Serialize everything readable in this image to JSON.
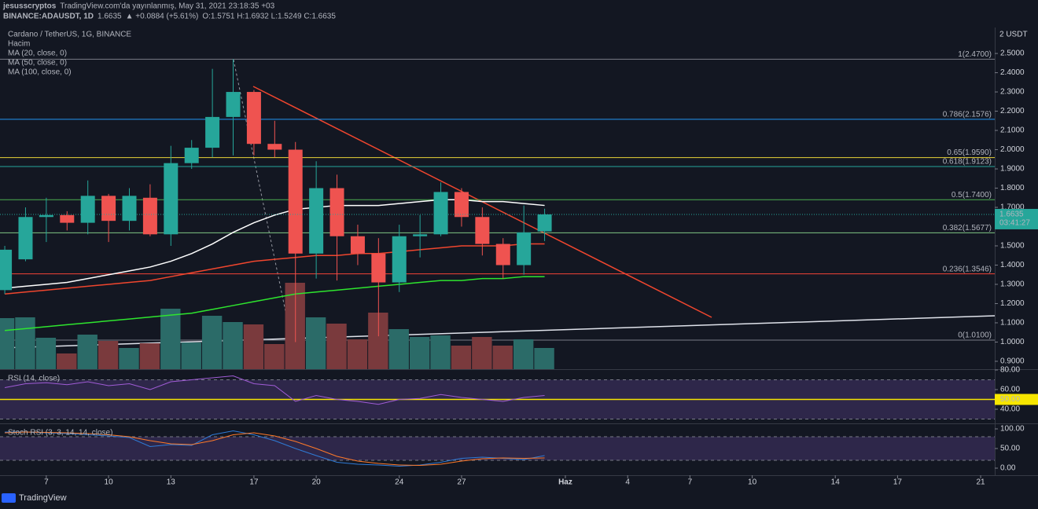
{
  "chart_data": {
    "type": "candlestick",
    "header": {
      "author": "jesusscryptos",
      "published": "TradingView.com'da yayınlanmış, May 31, 2021 23:18:35 +03",
      "symbol": "BINANCE:ADAUSDT, 1D",
      "last": "1.6635",
      "change": "▲ +0.0884 (+5.61%)",
      "ohlc": "O:1.5751 H:1.6932 L:1.5249 C:1.6635"
    },
    "title": "Cardano / TetherUS, 1G, BINANCE",
    "legend": [
      "Hacim",
      "MA (20, close, 0)",
      "MA (50, close, 0)",
      "MA (100, close, 0)"
    ],
    "currency_label": "2 USDT",
    "brand": "TradingView",
    "up_color": "#26a69a",
    "down_color": "#ef5350",
    "x": [
      5,
      6,
      7,
      8,
      9,
      10,
      11,
      12,
      13,
      14,
      15,
      16,
      17,
      18,
      19,
      20,
      21,
      22,
      23,
      24,
      25,
      26,
      27,
      28,
      29,
      30,
      31
    ],
    "xlim": [
      4.77,
      52.68
    ],
    "xticks": [
      7,
      10,
      13,
      17,
      20,
      24,
      27,
      {
        "value": 32,
        "label": "Haz"
      },
      {
        "value": 35,
        "label": "4"
      },
      {
        "value": 38,
        "label": "7"
      },
      {
        "value": 41,
        "label": "10"
      },
      {
        "value": 45,
        "label": "14"
      },
      {
        "value": 48,
        "label": "17"
      },
      {
        "value": 52,
        "label": "21"
      }
    ],
    "open": [
      1.27,
      1.43,
      1.65,
      1.66,
      1.62,
      1.76,
      1.63,
      1.75,
      1.56,
      1.93,
      2.01,
      2.17,
      2.3,
      2.03,
      2.0,
      1.46,
      1.8,
      1.55,
      1.46,
      1.31,
      1.55,
      1.56,
      1.78,
      1.65,
      1.51,
      1.4,
      1.5751
    ],
    "high": [
      1.5,
      1.7,
      1.75,
      1.68,
      1.84,
      1.77,
      1.8,
      1.82,
      2.02,
      2.05,
      2.42,
      2.47,
      2.31,
      2.15,
      2.04,
      1.94,
      1.87,
      1.61,
      1.54,
      1.61,
      1.66,
      1.83,
      1.8,
      1.7,
      1.54,
      1.71,
      1.6932
    ],
    "low": [
      1.25,
      1.42,
      1.52,
      1.58,
      1.56,
      1.52,
      1.58,
      1.55,
      1.5,
      1.9,
      1.96,
      1.97,
      1.97,
      1.96,
      1.0,
      1.33,
      1.32,
      1.4,
      1.03,
      1.26,
      1.44,
      1.55,
      1.6,
      1.45,
      1.33,
      1.35,
      1.5249
    ],
    "close": [
      1.48,
      1.65,
      1.66,
      1.62,
      1.76,
      1.63,
      1.76,
      1.56,
      1.93,
      2.01,
      2.17,
      2.3,
      2.03,
      2.0,
      1.46,
      1.8,
      1.55,
      1.46,
      1.31,
      1.55,
      1.56,
      1.78,
      1.65,
      1.51,
      1.4,
      1.57,
      1.6635
    ],
    "volume": [
      650,
      660,
      400,
      200,
      440,
      360,
      270,
      330,
      770,
      340,
      680,
      600,
      570,
      320,
      1100,
      660,
      580,
      380,
      720,
      510,
      410,
      430,
      300,
      410,
      300,
      380,
      270
    ],
    "volume_up_color": "#2b6b68",
    "volume_down_color": "#7a3a3d",
    "series": [
      {
        "name": "MA (20, close, 0)",
        "color": "#ffffff",
        "values": [
          1.28,
          1.29,
          1.3,
          1.31,
          1.33,
          1.35,
          1.37,
          1.39,
          1.42,
          1.46,
          1.51,
          1.57,
          1.62,
          1.66,
          1.69,
          1.7,
          1.71,
          1.71,
          1.71,
          1.72,
          1.73,
          1.74,
          1.74,
          1.73,
          1.73,
          1.72,
          1.71
        ]
      },
      {
        "name": "MA (50, close, 0)",
        "color": "#f0462e",
        "values": [
          1.25,
          1.26,
          1.27,
          1.28,
          1.29,
          1.3,
          1.31,
          1.32,
          1.34,
          1.36,
          1.38,
          1.4,
          1.42,
          1.43,
          1.44,
          1.45,
          1.45,
          1.46,
          1.46,
          1.47,
          1.48,
          1.49,
          1.5,
          1.5,
          1.5,
          1.51,
          1.51
        ]
      },
      {
        "name": "MA (100, close, 0)",
        "color": "#2ee52e",
        "values": [
          1.06,
          1.07,
          1.08,
          1.09,
          1.1,
          1.11,
          1.12,
          1.13,
          1.14,
          1.15,
          1.17,
          1.19,
          1.21,
          1.23,
          1.25,
          1.26,
          1.27,
          1.28,
          1.29,
          1.3,
          1.31,
          1.32,
          1.32,
          1.33,
          1.33,
          1.34,
          1.34
        ]
      }
    ],
    "ylim": [
      0.859,
      2.635
    ],
    "yticks": [
      {
        "value": 0.9,
        "label": "0.9000"
      },
      {
        "value": 1.0,
        "label": "1.0000"
      },
      {
        "value": 1.1,
        "label": "1.1000"
      },
      {
        "value": 1.2,
        "label": "1.2000"
      },
      {
        "value": 1.3,
        "label": "1.3000"
      },
      {
        "value": 1.4,
        "label": "1.4000"
      },
      {
        "value": 1.5,
        "label": "1.5000"
      },
      {
        "value": 1.6,
        "label": "1.6000"
      },
      {
        "value": 1.7,
        "label": "1.7000"
      },
      {
        "value": 1.8,
        "label": "1.8000"
      },
      {
        "value": 1.9,
        "label": "1.9000"
      },
      {
        "value": 2.0,
        "label": "2.0000"
      },
      {
        "value": 2.1,
        "label": "2.1000"
      },
      {
        "value": 2.2,
        "label": "2.2000"
      },
      {
        "value": 2.3,
        "label": "2.3000"
      },
      {
        "value": 2.4,
        "label": "2.4000"
      },
      {
        "value": 2.5,
        "label": "2.5000"
      }
    ],
    "fib_levels": [
      {
        "value": 2.47,
        "label": "1(2.4700)",
        "color": "#787b86"
      },
      {
        "value": 2.1576,
        "label": "0.786(2.1576)",
        "color": "#2196f3"
      },
      {
        "value": 1.959,
        "label": "0.65(1.9590)",
        "color": "#e9d437"
      },
      {
        "value": 1.9123,
        "label": "0.618(1.9123)",
        "color": "#26a69a"
      },
      {
        "value": 1.74,
        "label": "0.5(1.7400)",
        "color": "#4caf50"
      },
      {
        "value": 1.5677,
        "label": "0.382(1.5677)",
        "color": "#81c784"
      },
      {
        "value": 1.3546,
        "label": "0.236(1.3546)",
        "color": "#f44336"
      },
      {
        "value": 1.01,
        "label": "0(1.0100)",
        "color": "#787b86"
      }
    ],
    "price_tag": {
      "value": 1.6635,
      "countdown": "03:41:27"
    },
    "rsi": {
      "name": "RSI (14, close)",
      "color": "#a05cd6",
      "ylim": [
        26.4,
        80.8
      ],
      "yticks": [
        {
          "value": 80,
          "label": "80.00"
        },
        {
          "value": 60,
          "label": "60.00"
        },
        {
          "value": 40,
          "label": "40.00"
        }
      ],
      "level": {
        "value": 50,
        "label": "50.00"
      },
      "bands": [
        30,
        70
      ],
      "values": [
        62,
        66,
        67,
        65,
        68,
        64,
        66,
        60,
        68,
        70,
        72,
        74,
        66,
        64,
        48,
        54,
        50,
        48,
        45,
        50,
        51,
        55,
        52,
        50,
        48,
        52,
        54
      ]
    },
    "stoch": {
      "name": "Stoch RSI (3, 3, 14, 14, close)",
      "ylim": [
        -18,
        112
      ],
      "yticks": [
        {
          "value": 100,
          "label": "100.00"
        },
        {
          "value": 50,
          "label": "50.00"
        },
        {
          "value": 0,
          "label": "0.00"
        }
      ],
      "bands": [
        20,
        80
      ],
      "series": [
        {
          "color": "#2f7bd6",
          "values": [
            92,
            92,
            90,
            88,
            85,
            82,
            78,
            55,
            60,
            58,
            85,
            95,
            85,
            70,
            50,
            32,
            15,
            10,
            8,
            5,
            8,
            15,
            25,
            28,
            25,
            22,
            32
          ]
        },
        {
          "color": "#ff7a29",
          "values": [
            90,
            92,
            91,
            90,
            88,
            85,
            80,
            70,
            62,
            60,
            70,
            85,
            90,
            82,
            68,
            50,
            30,
            18,
            12,
            8,
            7,
            10,
            18,
            24,
            26,
            25,
            26
          ]
        }
      ]
    }
  }
}
